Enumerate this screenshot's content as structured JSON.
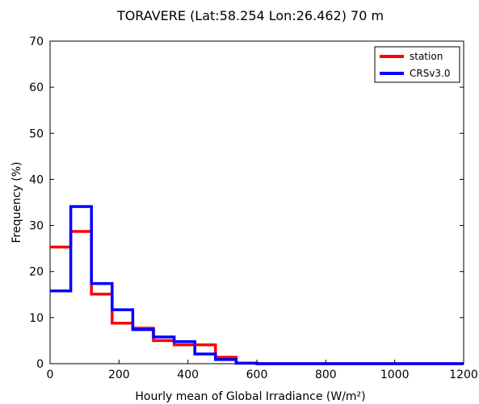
{
  "chart_data": {
    "type": "step-histogram",
    "title": "TORAVERE (Lat:58.254 Lon:26.462) 70 m",
    "xlabel": "Hourly mean of Global Irradiance (W/m²)",
    "ylabel": "Frequency (%)",
    "xlim": [
      0,
      1200
    ],
    "ylim": [
      0,
      70
    ],
    "xticks": [
      0,
      200,
      400,
      600,
      800,
      1000,
      1200
    ],
    "yticks": [
      0,
      10,
      20,
      30,
      40,
      50,
      60,
      70
    ],
    "bin_edges": [
      0,
      60,
      120,
      180,
      240,
      300,
      360,
      420,
      480,
      540,
      600,
      660,
      720,
      780,
      840,
      900,
      960,
      1020,
      1080,
      1140,
      1200
    ],
    "legend_position": "top-right",
    "series": [
      {
        "name": "station",
        "color": "#ff0000",
        "values": [
          25.3,
          28.7,
          15.1,
          8.8,
          7.7,
          5.0,
          4.1,
          4.1,
          1.4,
          0.1,
          0,
          0,
          0,
          0,
          0,
          0,
          0,
          0,
          0,
          0
        ]
      },
      {
        "name": "CRSv3.0",
        "color": "#0000ff",
        "values": [
          15.8,
          34.1,
          17.4,
          11.7,
          7.4,
          5.8,
          4.8,
          2.1,
          0.9,
          0.1,
          0,
          0,
          0,
          0,
          0,
          0,
          0,
          0,
          0,
          0
        ]
      }
    ]
  }
}
